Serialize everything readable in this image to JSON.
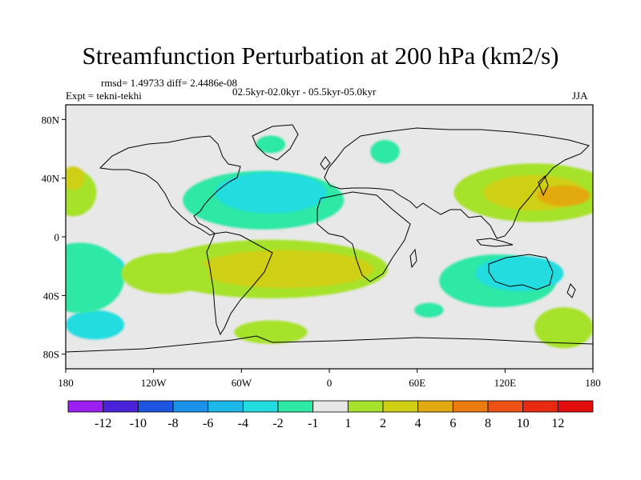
{
  "header": {
    "title": "Streamfunction Perturbation at 200 hPa (km2/s)",
    "stats": "rmsd= 1.49733 diff= 2.4486e-08",
    "experiment": "Expt = tekni-tekhi",
    "period": "02.5kyr-02.0kyr - 05.5kyr-05.0kyr",
    "season": "JJA"
  },
  "chart_data": {
    "type": "heatmap",
    "title": "Streamfunction Perturbation at 200 hPa (km2/s)",
    "projection": "cylindrical-equidistant",
    "x_range": [
      -180,
      180
    ],
    "y_range": [
      -90,
      90
    ],
    "x_ticks": [
      {
        "value": -180,
        "label": "180"
      },
      {
        "value": -120,
        "label": "120W"
      },
      {
        "value": -60,
        "label": "60W"
      },
      {
        "value": 0,
        "label": "0"
      },
      {
        "value": 60,
        "label": "60E"
      },
      {
        "value": 120,
        "label": "120E"
      },
      {
        "value": 180,
        "label": "180"
      }
    ],
    "y_ticks": [
      {
        "value": 80,
        "label": "80N"
      },
      {
        "value": 40,
        "label": "40N"
      },
      {
        "value": 0,
        "label": "0"
      },
      {
        "value": -40,
        "label": "40S"
      },
      {
        "value": -80,
        "label": "80S"
      }
    ],
    "colorbar": {
      "labels": [
        "-12",
        "-10",
        "-8",
        "-6",
        "-4",
        "-2",
        "-1",
        "1",
        "2",
        "4",
        "6",
        "8",
        "10",
        "12"
      ],
      "colors": [
        "#9a1ff0",
        "#4a22d8",
        "#1e55e0",
        "#1a92ea",
        "#1cb8ea",
        "#22dce0",
        "#2ee8a6",
        "#e8e8e8",
        "#a6e22c",
        "#cfcf14",
        "#e2aa10",
        "#ea7c12",
        "#ec5214",
        "#e82a12",
        "#e20e0e"
      ]
    },
    "contour_fields": [
      {
        "value": -1,
        "lon": -45,
        "lat": 25,
        "rlon": 55,
        "rlat": 20
      },
      {
        "value": -2,
        "lon": -40,
        "lat": 30,
        "rlon": 38,
        "rlat": 14
      },
      {
        "value": -1,
        "lon": 115,
        "lat": -30,
        "rlon": 40,
        "rlat": 18
      },
      {
        "value": -2,
        "lon": 130,
        "lat": -25,
        "rlon": 30,
        "rlat": 12
      },
      {
        "value": -2,
        "lon": -162,
        "lat": -20,
        "rlon": 22,
        "rlat": 10
      },
      {
        "value": -2,
        "lon": -160,
        "lat": -60,
        "rlon": 20,
        "rlat": 10
      },
      {
        "value": -1,
        "lon": -170,
        "lat": -28,
        "rlon": 30,
        "rlat": 24
      },
      {
        "value": -1,
        "lon": 38,
        "lat": 58,
        "rlon": 10,
        "rlat": 8
      },
      {
        "value": -1,
        "lon": -40,
        "lat": 63,
        "rlon": 10,
        "rlat": 6
      },
      {
        "value": -1,
        "lon": 68,
        "lat": -50,
        "rlon": 10,
        "rlat": 5
      },
      {
        "value": 1,
        "lon": -40,
        "lat": -22,
        "rlon": 80,
        "rlat": 20
      },
      {
        "value": 2,
        "lon": -30,
        "lat": -22,
        "rlon": 60,
        "rlat": 13
      },
      {
        "value": 1,
        "lon": 140,
        "lat": 30,
        "rlon": 55,
        "rlat": 20
      },
      {
        "value": 2,
        "lon": 140,
        "lat": 30,
        "rlon": 35,
        "rlat": 12
      },
      {
        "value": 4,
        "lon": 160,
        "lat": 28,
        "rlon": 18,
        "rlat": 7
      },
      {
        "value": 1,
        "lon": 160,
        "lat": -62,
        "rlon": 20,
        "rlat": 14
      },
      {
        "value": 1,
        "lon": -175,
        "lat": 30,
        "rlon": 16,
        "rlat": 16
      },
      {
        "value": 2,
        "lon": -175,
        "lat": 40,
        "rlon": 8,
        "rlat": 8
      },
      {
        "value": 1,
        "lon": -40,
        "lat": -65,
        "rlon": 25,
        "rlat": 8
      },
      {
        "value": 1,
        "lon": -112,
        "lat": -25,
        "rlon": 30,
        "rlat": 14
      }
    ]
  }
}
